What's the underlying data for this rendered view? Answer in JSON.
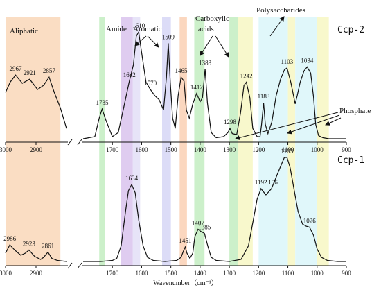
{
  "chart_data": {
    "type": "line",
    "xlabel": "Wavenumber（cm⁻¹）",
    "x_axis": {
      "reversed": true,
      "broken": true,
      "left_segment": [
        3000,
        2800
      ],
      "right_segment": [
        1800,
        900
      ],
      "ticks": [
        "3000",
        "2900",
        "1700",
        "1600",
        "1500",
        "1400",
        "1300",
        "1200",
        "1100",
        "1000",
        "900"
      ]
    },
    "bands": [
      {
        "from": 3000,
        "to": 2820,
        "color": "#fad9bd",
        "kind": "aliphatic"
      },
      {
        "from": 1745,
        "to": 1725,
        "color": "#c6eec4"
      },
      {
        "from": 1670,
        "to": 1630,
        "color": "#dcc6ee"
      },
      {
        "from": 1630,
        "to": 1605,
        "color": "#e4e1f7"
      },
      {
        "from": 1530,
        "to": 1500,
        "color": "#d8d8f6"
      },
      {
        "from": 1470,
        "to": 1445,
        "color": "#fbd3b8"
      },
      {
        "from": 1420,
        "to": 1385,
        "color": "#c6eec4"
      },
      {
        "from": 1300,
        "to": 1270,
        "color": "#c6eec4"
      },
      {
        "from": 1270,
        "to": 1220,
        "color": "#f7f7c6"
      },
      {
        "from": 1200,
        "to": 1100,
        "color": "#ddf6f9"
      },
      {
        "from": 1100,
        "to": 1075,
        "color": "#f7f7c6"
      },
      {
        "from": 1075,
        "to": 1000,
        "color": "#ddf6f9"
      },
      {
        "from": 1000,
        "to": 960,
        "color": "#f7f7c6"
      }
    ],
    "series": [
      {
        "name": "Ccp-2",
        "peaks": [
          {
            "x": 2967,
            "label": "2967"
          },
          {
            "x": 2921,
            "label": "2921"
          },
          {
            "x": 2857,
            "label": "2857"
          },
          {
            "x": 1735,
            "label": "1735"
          },
          {
            "x": 1642,
            "label": "1642"
          },
          {
            "x": 1610,
            "label": "1610"
          },
          {
            "x": 1570,
            "label": "1570"
          },
          {
            "x": 1509,
            "label": "1509"
          },
          {
            "x": 1465,
            "label": "1465"
          },
          {
            "x": 1412,
            "label": "1412"
          },
          {
            "x": 1383,
            "label": "1383"
          },
          {
            "x": 1298,
            "label": "1298"
          },
          {
            "x": 1242,
            "label": "1242"
          },
          {
            "x": 1183,
            "label": "1183"
          },
          {
            "x": 1103,
            "label": "1103"
          },
          {
            "x": 1034,
            "label": "1034"
          }
        ],
        "left_segment_points": [
          [
            3000,
            0.45
          ],
          [
            2985,
            0.55
          ],
          [
            2967,
            0.62
          ],
          [
            2945,
            0.54
          ],
          [
            2921,
            0.58
          ],
          [
            2895,
            0.48
          ],
          [
            2875,
            0.52
          ],
          [
            2857,
            0.6
          ],
          [
            2840,
            0.45
          ],
          [
            2820,
            0.3
          ],
          [
            2800,
            0.1
          ]
        ],
        "right_segment_points": [
          [
            1800,
            0.0
          ],
          [
            1760,
            0.02
          ],
          [
            1745,
            0.2
          ],
          [
            1735,
            0.29
          ],
          [
            1722,
            0.18
          ],
          [
            1700,
            0.02
          ],
          [
            1680,
            0.06
          ],
          [
            1660,
            0.32
          ],
          [
            1642,
            0.56
          ],
          [
            1628,
            0.72
          ],
          [
            1618,
            1.0
          ],
          [
            1610,
            1.04
          ],
          [
            1598,
            0.8
          ],
          [
            1585,
            0.55
          ],
          [
            1570,
            0.48
          ],
          [
            1555,
            0.42
          ],
          [
            1540,
            0.38
          ],
          [
            1525,
            0.28
          ],
          [
            1515,
            0.6
          ],
          [
            1509,
            0.93
          ],
          [
            1502,
            0.55
          ],
          [
            1494,
            0.2
          ],
          [
            1485,
            0.1
          ],
          [
            1475,
            0.42
          ],
          [
            1465,
            0.6
          ],
          [
            1455,
            0.56
          ],
          [
            1447,
            0.28
          ],
          [
            1437,
            0.2
          ],
          [
            1425,
            0.34
          ],
          [
            1412,
            0.44
          ],
          [
            1400,
            0.36
          ],
          [
            1392,
            0.4
          ],
          [
            1383,
            0.68
          ],
          [
            1375,
            0.35
          ],
          [
            1362,
            0.06
          ],
          [
            1345,
            0.01
          ],
          [
            1320,
            0.02
          ],
          [
            1305,
            0.06
          ],
          [
            1298,
            0.1
          ],
          [
            1290,
            0.05
          ],
          [
            1275,
            0.04
          ],
          [
            1262,
            0.25
          ],
          [
            1250,
            0.52
          ],
          [
            1242,
            0.55
          ],
          [
            1230,
            0.4
          ],
          [
            1220,
            0.1
          ],
          [
            1205,
            0.02
          ],
          [
            1195,
            0.02
          ],
          [
            1190,
            0.14
          ],
          [
            1183,
            0.35
          ],
          [
            1177,
            0.14
          ],
          [
            1168,
            0.05
          ],
          [
            1155,
            0.16
          ],
          [
            1140,
            0.42
          ],
          [
            1125,
            0.58
          ],
          [
            1112,
            0.67
          ],
          [
            1103,
            0.69
          ],
          [
            1090,
            0.55
          ],
          [
            1075,
            0.34
          ],
          [
            1068,
            0.42
          ],
          [
            1058,
            0.55
          ],
          [
            1045,
            0.66
          ],
          [
            1034,
            0.7
          ],
          [
            1022,
            0.64
          ],
          [
            1012,
            0.4
          ],
          [
            1005,
            0.14
          ],
          [
            995,
            0.03
          ],
          [
            980,
            0.01
          ],
          [
            960,
            0.0
          ],
          [
            900,
            0.0
          ]
        ]
      },
      {
        "name": "Ccp-1",
        "peaks": [
          {
            "x": 2986,
            "label": "2986"
          },
          {
            "x": 2923,
            "label": "2923"
          },
          {
            "x": 2861,
            "label": "2861"
          },
          {
            "x": 1634,
            "label": "1634"
          },
          {
            "x": 1451,
            "label": "1451"
          },
          {
            "x": 1407,
            "label": "1407"
          },
          {
            "x": 1385,
            "label": "1385"
          },
          {
            "x": 1192,
            "label": "1192"
          },
          {
            "x": 1156,
            "label": "1156"
          },
          {
            "x": 1103,
            "label": "1103"
          },
          {
            "x": 1026,
            "label": "1026"
          }
        ],
        "left_segment_points": [
          [
            3000,
            0.08
          ],
          [
            2986,
            0.16
          ],
          [
            2970,
            0.11
          ],
          [
            2950,
            0.06
          ],
          [
            2935,
            0.08
          ],
          [
            2923,
            0.11
          ],
          [
            2905,
            0.05
          ],
          [
            2885,
            0.02
          ],
          [
            2875,
            0.04
          ],
          [
            2861,
            0.09
          ],
          [
            2848,
            0.03
          ],
          [
            2830,
            0.01
          ],
          [
            2800,
            0.0
          ]
        ],
        "right_segment_points": [
          [
            1800,
            0.0
          ],
          [
            1740,
            0.0
          ],
          [
            1700,
            0.01
          ],
          [
            1685,
            0.03
          ],
          [
            1670,
            0.15
          ],
          [
            1655,
            0.48
          ],
          [
            1645,
            0.68
          ],
          [
            1634,
            0.74
          ],
          [
            1622,
            0.66
          ],
          [
            1610,
            0.4
          ],
          [
            1595,
            0.15
          ],
          [
            1580,
            0.04
          ],
          [
            1560,
            0.01
          ],
          [
            1520,
            0.0
          ],
          [
            1480,
            0.01
          ],
          [
            1465,
            0.04
          ],
          [
            1457,
            0.1
          ],
          [
            1451,
            0.14
          ],
          [
            1445,
            0.08
          ],
          [
            1435,
            0.03
          ],
          [
            1425,
            0.08
          ],
          [
            1418,
            0.24
          ],
          [
            1407,
            0.31
          ],
          [
            1398,
            0.29
          ],
          [
            1385,
            0.27
          ],
          [
            1374,
            0.15
          ],
          [
            1362,
            0.04
          ],
          [
            1345,
            0.01
          ],
          [
            1300,
            0.0
          ],
          [
            1260,
            0.02
          ],
          [
            1235,
            0.15
          ],
          [
            1218,
            0.4
          ],
          [
            1205,
            0.6
          ],
          [
            1192,
            0.7
          ],
          [
            1175,
            0.64
          ],
          [
            1156,
            0.7
          ],
          [
            1130,
            0.88
          ],
          [
            1112,
            1.0
          ],
          [
            1103,
            1.0
          ],
          [
            1092,
            0.9
          ],
          [
            1078,
            0.68
          ],
          [
            1065,
            0.48
          ],
          [
            1050,
            0.36
          ],
          [
            1038,
            0.34
          ],
          [
            1026,
            0.33
          ],
          [
            1012,
            0.25
          ],
          [
            1000,
            0.12
          ],
          [
            985,
            0.04
          ],
          [
            965,
            0.01
          ],
          [
            930,
            0.0
          ],
          [
            900,
            0.0
          ]
        ]
      }
    ],
    "annotations": [
      {
        "text": "Aliphatic",
        "kind": "region"
      },
      {
        "text": "Amide",
        "kind": "region"
      },
      {
        "text": "Aromatic",
        "kind": "region"
      },
      {
        "text": "Carboxylic",
        "kind": "region"
      },
      {
        "text": "acids",
        "kind": "region"
      },
      {
        "text": "Polysaccharides",
        "kind": "region"
      },
      {
        "text": "Phosphate",
        "kind": "region"
      }
    ]
  }
}
